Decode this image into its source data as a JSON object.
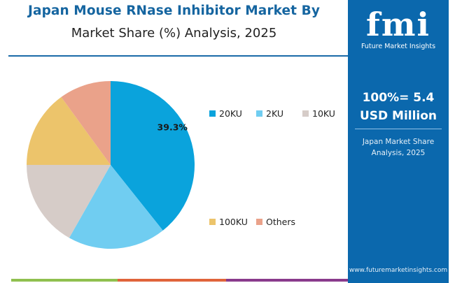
{
  "header": {
    "title": "Japan Mouse RNase Inhibitor Market By",
    "subtitle": "Market Share (%) Analysis, 2025"
  },
  "side_panel": {
    "logo_text": "fmi",
    "logo_caption": "Future Market Insights",
    "total_line1": "100%= 5.4",
    "total_line2": "USD Million",
    "caption_line1": "Japan Market Share",
    "caption_line2": "Analysis, 2025",
    "url": "www.futuremarketinsights.com",
    "background_color": "#0b68ad"
  },
  "bottom_bar_colors": [
    "#8fc04f",
    "#e0643a",
    "#8a3a8c"
  ],
  "chart_data": {
    "type": "pie",
    "title": "Japan Mouse RNase Inhibitor Market By Market Share (%) Analysis, 2025",
    "start_angle": "top, clockwise",
    "legend_position": "right",
    "slices": [
      {
        "label": "20KU",
        "value": 39.3,
        "color": "#0aa3dc",
        "show_label": true,
        "data_label": "39.3%"
      },
      {
        "label": "2KU",
        "value": 18.9,
        "color": "#70cdf1",
        "show_label": false
      },
      {
        "label": "10KU",
        "value": 16.8,
        "color": "#d6ccc8",
        "show_label": false
      },
      {
        "label": "100KU",
        "value": 15.0,
        "color": "#ecc46b",
        "show_label": false
      },
      {
        "label": "Others",
        "value": 10.0,
        "color": "#eaa28a",
        "show_label": false
      }
    ]
  }
}
